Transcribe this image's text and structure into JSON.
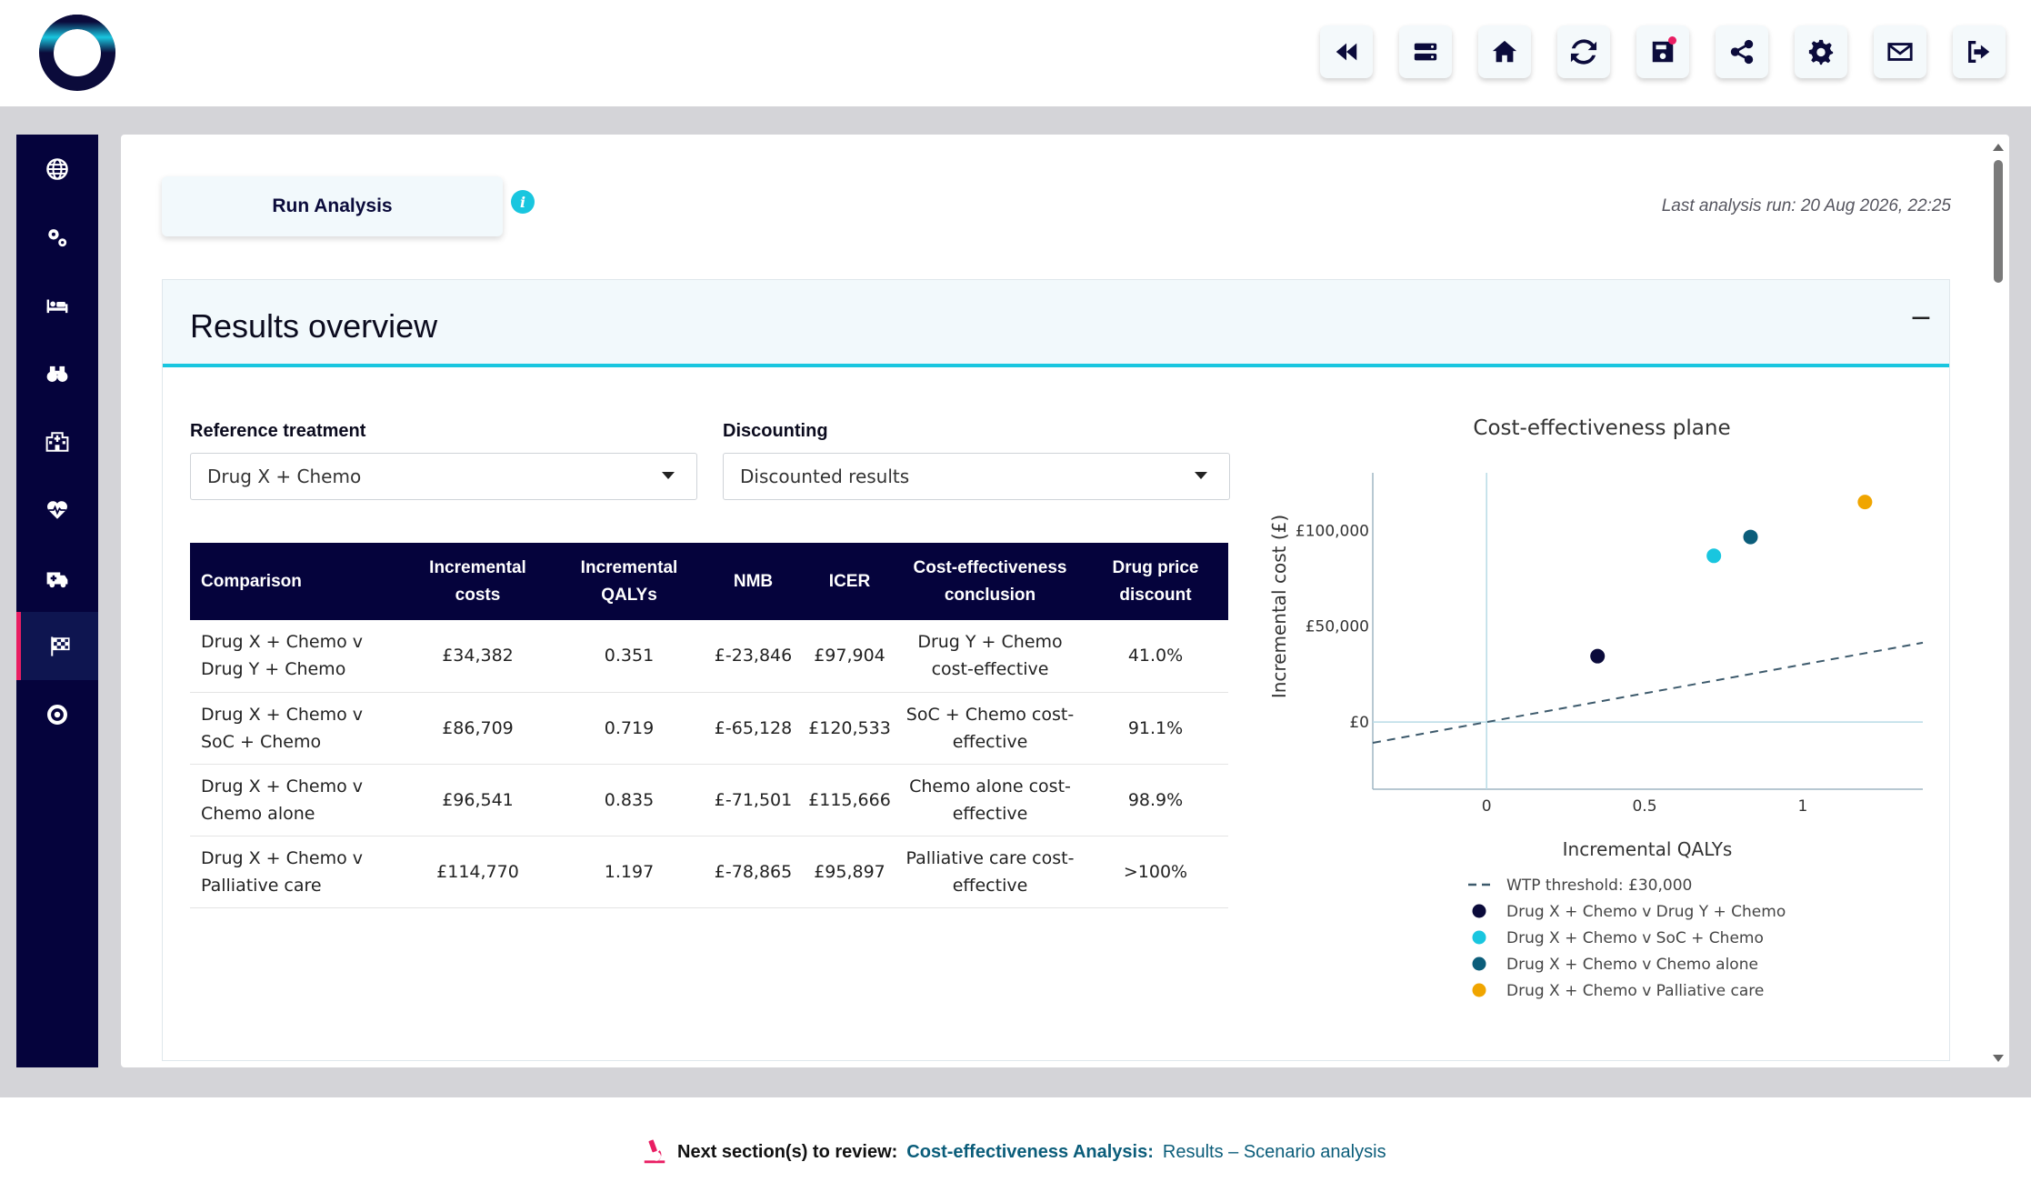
{
  "toolbar": {
    "buttons": [
      {
        "name": "rewind-icon"
      },
      {
        "name": "server-icon"
      },
      {
        "name": "home-icon"
      },
      {
        "name": "refresh-icon"
      },
      {
        "name": "save-icon"
      },
      {
        "name": "share-icon"
      },
      {
        "name": "gear-icon"
      },
      {
        "name": "mail-icon"
      },
      {
        "name": "logout-icon"
      }
    ]
  },
  "sidebar": {
    "items": [
      {
        "icon": "globe-icon"
      },
      {
        "icon": "gears-icon"
      },
      {
        "icon": "bed-icon"
      },
      {
        "icon": "binoculars-icon"
      },
      {
        "icon": "hospital-icon"
      },
      {
        "icon": "heartbeat-icon"
      },
      {
        "icon": "ambulance-icon"
      },
      {
        "icon": "flag-checkered-icon",
        "active": true
      },
      {
        "icon": "life-ring-icon"
      }
    ]
  },
  "main": {
    "run_label": "Run Analysis",
    "last_run": "Last analysis run: 20 Aug 2026, 22:25"
  },
  "results": {
    "title": "Results overview",
    "collapse_symbol": "−",
    "reference_label": "Reference treatment",
    "reference_value": "Drug X + Chemo",
    "discounting_label": "Discounting",
    "discounting_value": "Discounted results",
    "table": {
      "headers": [
        "Comparison",
        "Incremental costs",
        "Incremental QALYs",
        "NMB",
        "ICER",
        "Cost-effectiveness conclusion",
        "Drug price discount"
      ],
      "rows": [
        {
          "comparison": "Drug X + Chemo v Drug Y + Chemo",
          "inc_costs": "£34,382",
          "inc_qalys": "0.351",
          "nmb": "£-23,846",
          "icer": "£97,904",
          "conclusion": "Drug Y + Chemo cost-effective",
          "discount": "41.0%"
        },
        {
          "comparison": "Drug X + Chemo v SoC + Chemo",
          "inc_costs": "£86,709",
          "inc_qalys": "0.719",
          "nmb": "£-65,128",
          "icer": "£120,533",
          "conclusion": "SoC + Chemo cost-effective",
          "discount": "91.1%"
        },
        {
          "comparison": "Drug X + Chemo v Chemo alone",
          "inc_costs": "£96,541",
          "inc_qalys": "0.835",
          "nmb": "£-71,501",
          "icer": "£115,666",
          "conclusion": "Chemo alone cost-effective",
          "discount": "98.9%"
        },
        {
          "comparison": "Drug X + Chemo v Palliative care",
          "inc_costs": "£114,770",
          "inc_qalys": "1.197",
          "nmb": "£-78,865",
          "icer": "£95,897",
          "conclusion": "Palliative care cost-effective",
          "discount": ">100%"
        }
      ]
    }
  },
  "chart_data": {
    "type": "scatter",
    "title": "Cost-effectiveness plane",
    "xlabel": "Incremental QALYs",
    "ylabel": "Incremental cost (£)",
    "xlim": [
      -0.36,
      1.38
    ],
    "ylim": [
      -35000,
      130000
    ],
    "x_ticks": [
      0,
      0.5,
      1
    ],
    "x_tick_labels": [
      "0",
      "0.5",
      "1"
    ],
    "y_ticks": [
      0,
      50000,
      100000
    ],
    "y_tick_labels": [
      "£0",
      "£50,000",
      "£100,000"
    ],
    "wtp": {
      "name": "WTP threshold: £30,000",
      "slope": 30000,
      "color": "#3d5a6c"
    },
    "series": [
      {
        "name": "Drug X + Chemo v Drug Y + Chemo",
        "x": 0.351,
        "y": 34382,
        "color": "#0b0b3b"
      },
      {
        "name": "Drug X + Chemo v SoC + Chemo",
        "x": 0.719,
        "y": 86709,
        "color": "#19c6df"
      },
      {
        "name": "Drug X + Chemo v Chemo alone",
        "x": 0.835,
        "y": 96541,
        "color": "#0b5d7a"
      },
      {
        "name": "Drug X + Chemo v Palliative care",
        "x": 1.197,
        "y": 114770,
        "color": "#f0a500"
      }
    ],
    "legend_position": "bottom"
  },
  "footer": {
    "lead": "Next section(s) to review:",
    "section": "Cost-effectiveness Analysis:",
    "subsection": "Results – Scenario analysis"
  }
}
